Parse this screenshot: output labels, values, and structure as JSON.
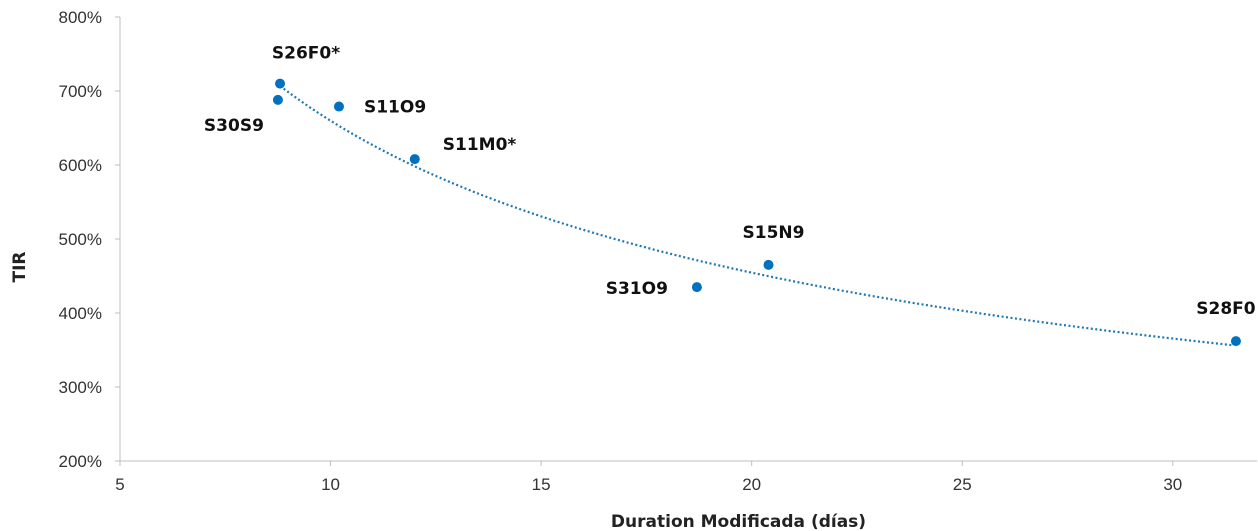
{
  "chart_data": {
    "type": "scatter",
    "xlabel": "Duration Modificada (días)",
    "ylabel": "TIR",
    "xlim": [
      5,
      32
    ],
    "ylim": [
      200,
      800
    ],
    "x_ticks": [
      "5",
      "10",
      "15",
      "20",
      "25",
      "30"
    ],
    "y_ticks": [
      "200%",
      "300%",
      "400%",
      "500%",
      "600%",
      "700%",
      "800%"
    ],
    "grid": false,
    "legend": "none",
    "point_color": "#0070C0",
    "trendline": {
      "style": "dotted",
      "color": "#1F77B4",
      "x_from": 8.8,
      "x_to": 31.4
    },
    "points": [
      {
        "label": "S26F0*",
        "x": 8.8,
        "y": 710
      },
      {
        "label": "S30S9",
        "x": 8.75,
        "y": 688
      },
      {
        "label": "S11O9",
        "x": 10.2,
        "y": 679
      },
      {
        "label": "S11M0*",
        "x": 12.0,
        "y": 608
      },
      {
        "label": "S31O9",
        "x": 18.7,
        "y": 435
      },
      {
        "label": "S15N9",
        "x": 20.4,
        "y": 465
      },
      {
        "label": "S28F0",
        "x": 31.5,
        "y": 362
      }
    ]
  }
}
